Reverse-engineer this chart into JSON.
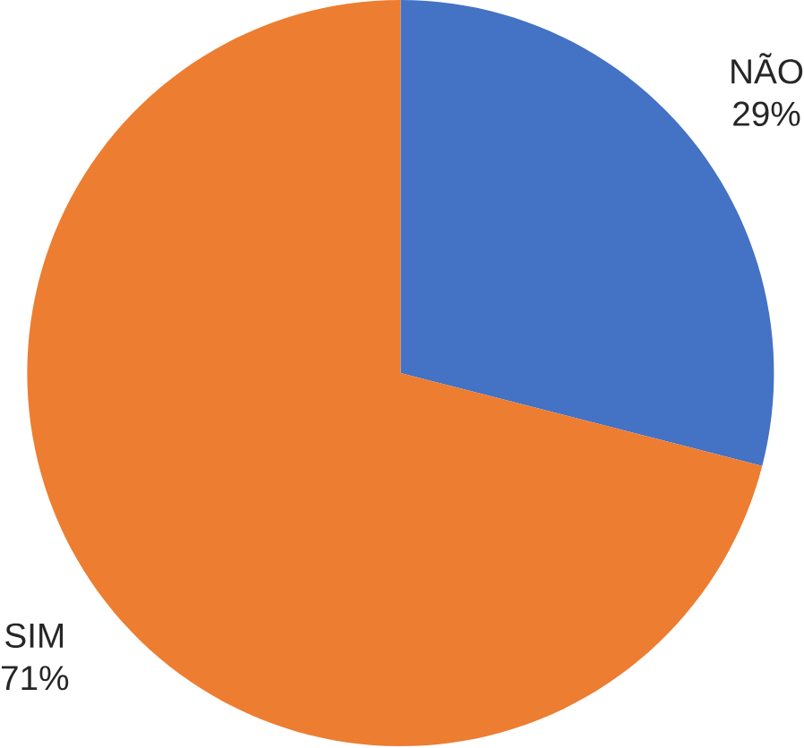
{
  "chart_data": {
    "type": "pie",
    "categories": [
      "NÃO",
      "SIM"
    ],
    "values": [
      29,
      71
    ],
    "value_labels": [
      "29%",
      "71%"
    ],
    "colors": [
      "#4472c4",
      "#ed7d31"
    ]
  }
}
